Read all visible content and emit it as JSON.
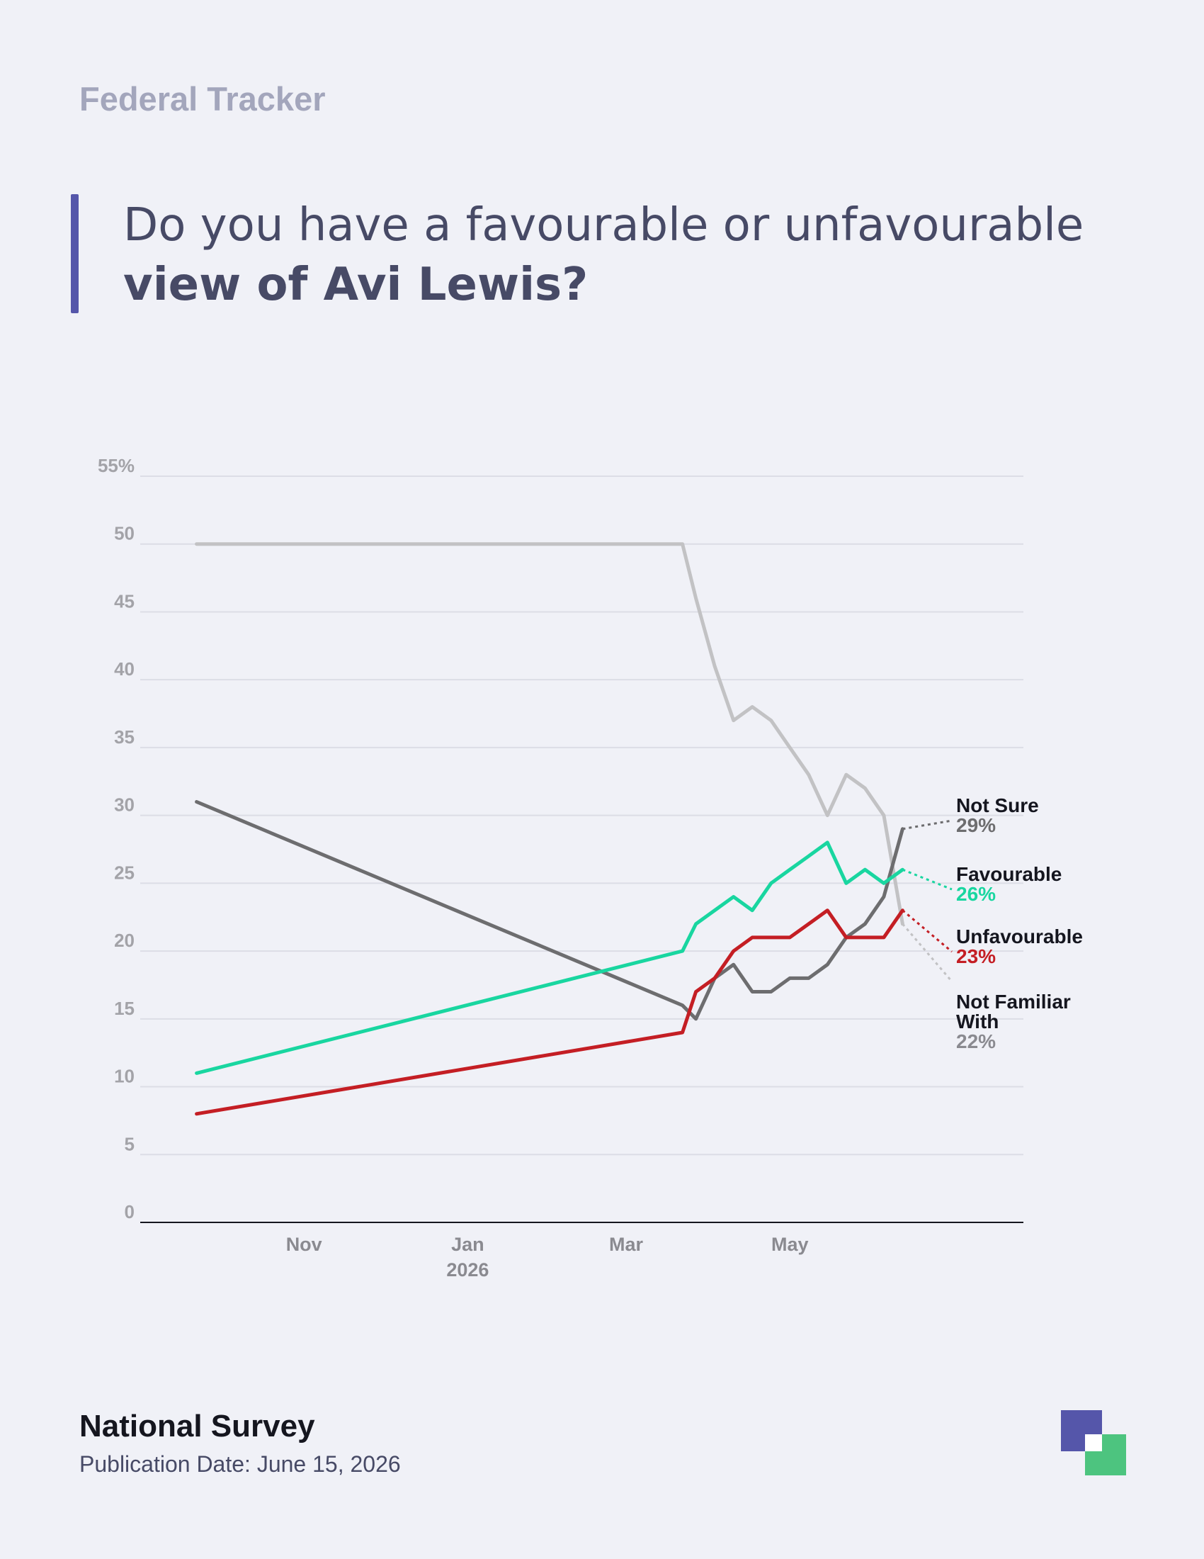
{
  "header": {
    "brand": "Federal Tracker",
    "question_plain": "Do you have a favourable or unfavourable ",
    "question_bold": "view of Avi Lewis?"
  },
  "footer": {
    "survey_name": "National Survey",
    "publication_date": "Publication Date: June 15, 2026"
  },
  "colors": {
    "favourable": "#19d6a0",
    "unfavourable": "#c41e24",
    "not_sure": "#6d6d6f",
    "not_familiar": "#c2c2c4",
    "accent": "#5556aa",
    "logo_green": "#4dc47f"
  },
  "chart_data": {
    "type": "line",
    "title": "",
    "xlabel": "",
    "ylabel": "",
    "ylim": [
      0,
      55
    ],
    "yticks": [
      0,
      5,
      10,
      15,
      20,
      25,
      30,
      35,
      40,
      45,
      50,
      55
    ],
    "ytick_labels": [
      "0",
      "5",
      "10",
      "15",
      "20",
      "25",
      "30",
      "35",
      "40",
      "45",
      "50",
      "55%"
    ],
    "xlim": [
      "2025-09-01",
      "2026-07-27"
    ],
    "xticks": [
      {
        "date": "2025-11-01",
        "label": "Nov",
        "sublabel": ""
      },
      {
        "date": "2026-01-01",
        "label": "Jan",
        "sublabel": "2026"
      },
      {
        "date": "2026-03-01",
        "label": "Mar",
        "sublabel": ""
      },
      {
        "date": "2026-05-01",
        "label": "May",
        "sublabel": ""
      }
    ],
    "grid": true,
    "series": [
      {
        "name": "Not Familiar With",
        "color": "#c2c2c4",
        "end_label": "22%",
        "points": [
          [
            "2025-09-22",
            50
          ],
          [
            "2026-03-22",
            50
          ],
          [
            "2026-03-27",
            46
          ],
          [
            "2026-04-03",
            41
          ],
          [
            "2026-04-10",
            37
          ],
          [
            "2026-04-17",
            38
          ],
          [
            "2026-04-24",
            37
          ],
          [
            "2026-05-01",
            35
          ],
          [
            "2026-05-08",
            33
          ],
          [
            "2026-05-15",
            30
          ],
          [
            "2026-05-22",
            33
          ],
          [
            "2026-05-29",
            32
          ],
          [
            "2026-06-05",
            30
          ],
          [
            "2026-06-12",
            22
          ]
        ]
      },
      {
        "name": "Not Sure",
        "color": "#6d6d6f",
        "end_label": "29%",
        "points": [
          [
            "2025-09-22",
            31
          ],
          [
            "2026-03-22",
            16
          ],
          [
            "2026-03-27",
            15
          ],
          [
            "2026-04-03",
            18
          ],
          [
            "2026-04-10",
            19
          ],
          [
            "2026-04-17",
            17
          ],
          [
            "2026-04-24",
            17
          ],
          [
            "2026-05-01",
            18
          ],
          [
            "2026-05-08",
            18
          ],
          [
            "2026-05-15",
            19
          ],
          [
            "2026-05-22",
            21
          ],
          [
            "2026-05-29",
            22
          ],
          [
            "2026-06-05",
            24
          ],
          [
            "2026-06-12",
            29
          ]
        ]
      },
      {
        "name": "Favourable",
        "color": "#19d6a0",
        "end_label": "26%",
        "points": [
          [
            "2025-09-22",
            11
          ],
          [
            "2026-03-22",
            20
          ],
          [
            "2026-03-27",
            22
          ],
          [
            "2026-04-03",
            23
          ],
          [
            "2026-04-10",
            24
          ],
          [
            "2026-04-17",
            23
          ],
          [
            "2026-04-24",
            25
          ],
          [
            "2026-05-01",
            26
          ],
          [
            "2026-05-08",
            27
          ],
          [
            "2026-05-15",
            28
          ],
          [
            "2026-05-22",
            25
          ],
          [
            "2026-05-29",
            26
          ],
          [
            "2026-06-05",
            25
          ],
          [
            "2026-06-12",
            26
          ]
        ]
      },
      {
        "name": "Unfavourable",
        "color": "#c41e24",
        "end_label": "23%",
        "points": [
          [
            "2025-09-22",
            8
          ],
          [
            "2026-03-22",
            14
          ],
          [
            "2026-03-27",
            17
          ],
          [
            "2026-04-03",
            18
          ],
          [
            "2026-04-10",
            20
          ],
          [
            "2026-04-17",
            21
          ],
          [
            "2026-04-24",
            21
          ],
          [
            "2026-05-01",
            21
          ],
          [
            "2026-05-08",
            22
          ],
          [
            "2026-05-15",
            23
          ],
          [
            "2026-05-22",
            21
          ],
          [
            "2026-05-29",
            21
          ],
          [
            "2026-06-05",
            21
          ],
          [
            "2026-06-12",
            23
          ]
        ]
      }
    ],
    "end_labels": [
      {
        "series": "Not Sure",
        "lines": [
          "Not Sure"
        ],
        "value": "29%"
      },
      {
        "series": "Favourable",
        "lines": [
          "Favourable"
        ],
        "value": "26%"
      },
      {
        "series": "Unfavourable",
        "lines": [
          "Unfavourable"
        ],
        "value": "23%"
      },
      {
        "series": "Not Familiar With",
        "lines": [
          "Not Familiar",
          "With"
        ],
        "value": "22%"
      }
    ]
  }
}
